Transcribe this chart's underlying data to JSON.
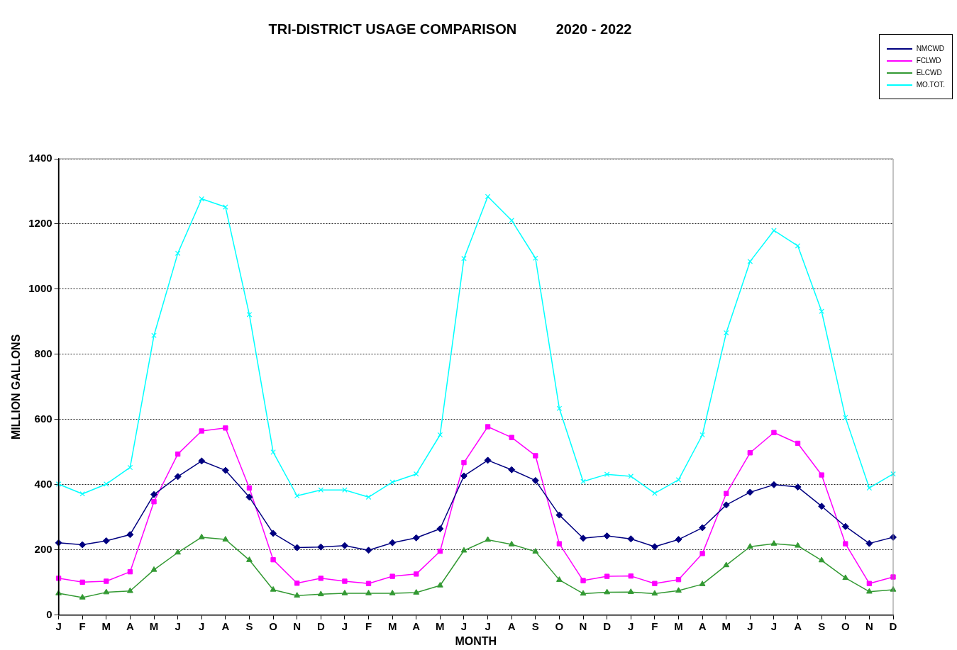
{
  "chart_data": {
    "type": "line",
    "title": "TRI-DISTRICT USAGE COMPARISON          2020 - 2022",
    "xlabel": "MONTH",
    "ylabel": "MILLION GALLONS",
    "categories": [
      "J",
      "F",
      "M",
      "A",
      "M",
      "J",
      "J",
      "A",
      "S",
      "O",
      "N",
      "D",
      "J",
      "F",
      "M",
      "A",
      "M",
      "J",
      "J",
      "A",
      "S",
      "O",
      "N",
      "D",
      "J",
      "F",
      "M",
      "A",
      "M",
      "J",
      "J",
      "A",
      "S",
      "O",
      "N",
      "D"
    ],
    "series": [
      {
        "name": "NMCWD",
        "color": "#000080",
        "marker": "diamond",
        "values": [
          222,
          216,
          228,
          247,
          370,
          425,
          473,
          444,
          362,
          251,
          207,
          209,
          213,
          199,
          222,
          237,
          265,
          427,
          475,
          446,
          413,
          307,
          236,
          243,
          234,
          210,
          232,
          268,
          338,
          377,
          400,
          393,
          334,
          272,
          220,
          239
        ]
      },
      {
        "name": "FCLWD",
        "color": "#ff00ff",
        "marker": "square",
        "values": [
          113,
          101,
          104,
          133,
          348,
          494,
          565,
          574,
          390,
          170,
          98,
          113,
          104,
          97,
          119,
          126,
          196,
          468,
          578,
          545,
          489,
          219,
          106,
          119,
          120,
          97,
          109,
          189,
          373,
          498,
          560,
          527,
          430,
          219,
          97,
          117
        ]
      },
      {
        "name": "ELCWD",
        "color": "#339933",
        "marker": "triangle",
        "values": [
          67,
          54,
          70,
          74,
          139,
          192,
          239,
          232,
          169,
          78,
          60,
          64,
          67,
          67,
          67,
          69,
          91,
          198,
          231,
          217,
          195,
          108,
          66,
          70,
          71,
          66,
          75,
          95,
          153,
          210,
          219,
          213,
          168,
          114,
          72,
          78
        ]
      },
      {
        "name": "MO.TOT.",
        "color": "#00ffff",
        "marker": "cross",
        "values": [
          402,
          372,
          402,
          453,
          858,
          1110,
          1277,
          1252,
          922,
          500,
          366,
          384,
          384,
          362,
          408,
          433,
          553,
          1094,
          1284,
          1211,
          1095,
          634,
          410,
          432,
          426,
          374,
          415,
          553,
          866,
          1085,
          1180,
          1133,
          932,
          606,
          390,
          433
        ]
      }
    ],
    "ylim": [
      0,
      1400
    ],
    "yticks": [
      0,
      200,
      400,
      600,
      800,
      1000,
      1200,
      1400
    ],
    "grid": "y",
    "legend": "top right",
    "line_style": "solid"
  }
}
